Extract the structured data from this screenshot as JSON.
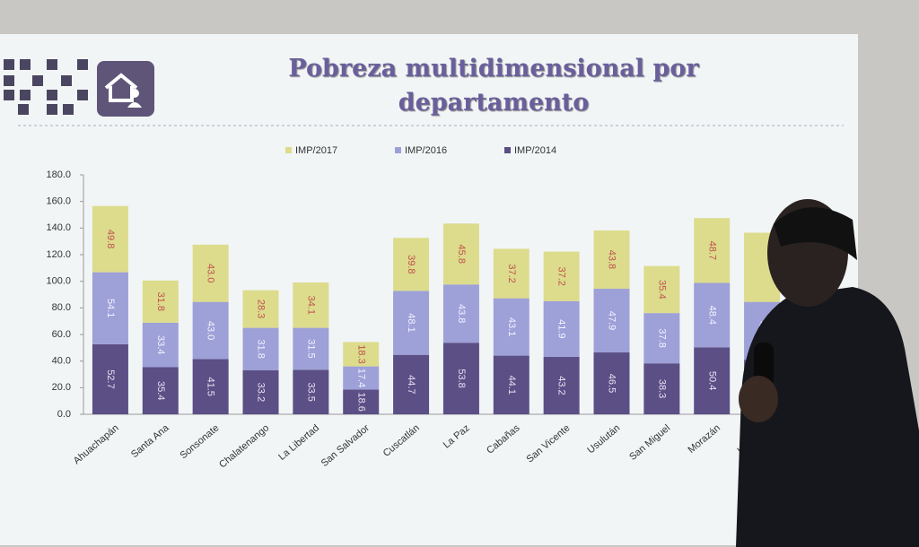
{
  "chart_data": {
    "type": "stacked_bar",
    "title": "Pobreza multidimensional por departamento",
    "categories": [
      "Ahuachapán",
      "Santa Ana",
      "Sonsonate",
      "Chalatenango",
      "La Libertad",
      "San Salvador",
      "Cuscatlán",
      "La Paz",
      "Cabañas",
      "San Vicente",
      "Usulután",
      "San Miguel",
      "Morazán",
      "La Unión"
    ],
    "series": [
      {
        "name": "IMP/2014",
        "color": "#5b4f86",
        "values": [
          52.7,
          35.4,
          41.5,
          33.2,
          33.5,
          18.6,
          44.7,
          53.8,
          44.1,
          43.2,
          46.5,
          38.3,
          50.4,
          41.0
        ],
        "value_labels": [
          "52.7",
          "35.4",
          "41.5",
          "33.2",
          "33.5",
          "18.6",
          "44.7",
          "53.8",
          "44.1",
          "43.2",
          "46.5",
          "38.3",
          "50.4",
          null
        ]
      },
      {
        "name": "IMP/2016",
        "color": "#9ea0d8",
        "values": [
          54.1,
          33.4,
          43.0,
          31.8,
          31.5,
          17.4,
          48.1,
          43.8,
          43.1,
          41.9,
          47.9,
          37.8,
          48.4,
          43.5
        ],
        "value_labels": [
          "54.1",
          "33.4",
          "43.0",
          "31.8",
          "31.5",
          "17.4",
          "48.1",
          "43.8",
          "43.1",
          "41.9",
          "47.9",
          "37.8",
          "48.4",
          "43.5"
        ]
      },
      {
        "name": "IMP/2017",
        "color": "#dcdc8c",
        "values": [
          49.8,
          31.8,
          43.0,
          28.3,
          34.1,
          18.3,
          39.8,
          45.8,
          37.2,
          37.2,
          43.8,
          35.4,
          48.7,
          52.0
        ],
        "value_labels": [
          "49.8",
          "31.8",
          "43.0",
          "28.3",
          "34.1",
          "18.3",
          "39.8",
          "45.8",
          "37.2",
          "37.2",
          "43.8",
          "35.4",
          "48.7",
          null
        ]
      }
    ],
    "ylim": [
      0,
      180
    ],
    "yticks": [
      {
        "value": 0,
        "label": "0.0"
      },
      {
        "value": 20,
        "label": "20.0"
      },
      {
        "value": 40,
        "label": "40.0"
      },
      {
        "value": 60,
        "label": "60.0"
      },
      {
        "value": 80,
        "label": "80.0"
      },
      {
        "value": 100,
        "label": "100.0"
      },
      {
        "value": 120,
        "label": "120.0"
      },
      {
        "value": 140,
        "label": "140.0"
      },
      {
        "value": 160,
        "label": "160.0"
      },
      {
        "value": 180,
        "label": "180.0"
      }
    ],
    "grid": false
  }
}
